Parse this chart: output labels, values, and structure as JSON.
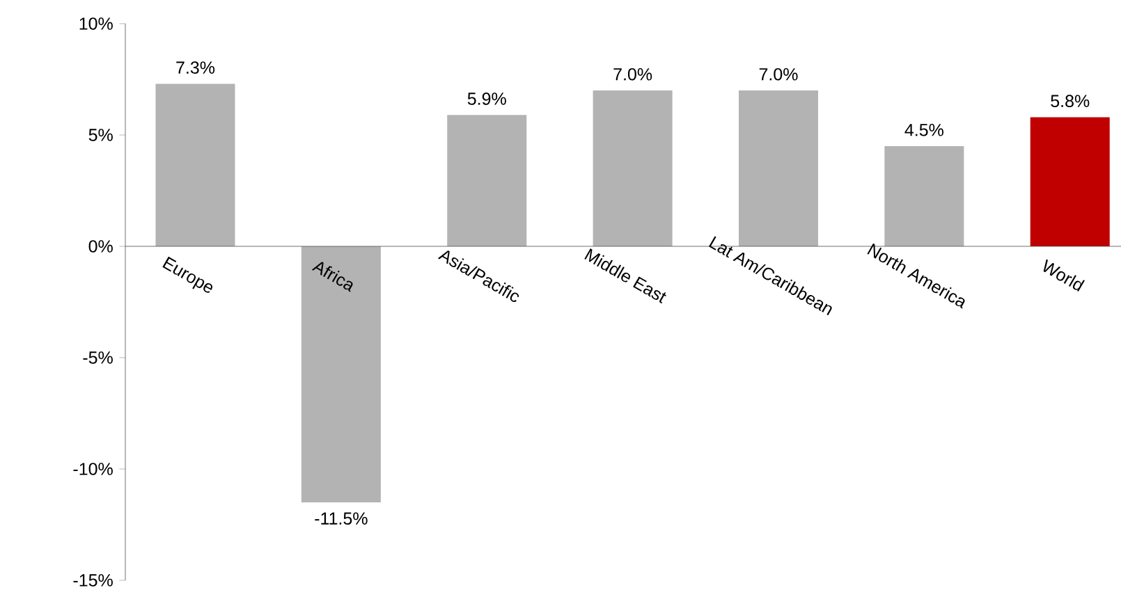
{
  "chart_data": {
    "type": "bar",
    "categories": [
      "Europe",
      "Africa",
      "Asia/Pacific",
      "Middle East",
      "Lat Am/Caribbean",
      "North America",
      "World"
    ],
    "values": [
      7.3,
      -11.5,
      5.9,
      7.0,
      7.0,
      4.5,
      5.8
    ],
    "colors": [
      "#b3b3b3",
      "#b3b3b3",
      "#b3b3b3",
      "#b3b3b3",
      "#b3b3b3",
      "#b3b3b3",
      "#c00000"
    ],
    "value_labels": [
      "7.3%",
      "-11.5%",
      "5.9%",
      "7.0%",
      "7.0%",
      "4.5%",
      "5.8%"
    ],
    "ylim": [
      -15,
      10
    ],
    "yticks": [
      {
        "value": -15,
        "label": "-15%"
      },
      {
        "value": -10,
        "label": "-10%"
      },
      {
        "value": -5,
        "label": "-5%"
      },
      {
        "value": 0,
        "label": "0%"
      },
      {
        "value": 5,
        "label": "5%"
      },
      {
        "value": 10,
        "label": "10%"
      }
    ]
  }
}
